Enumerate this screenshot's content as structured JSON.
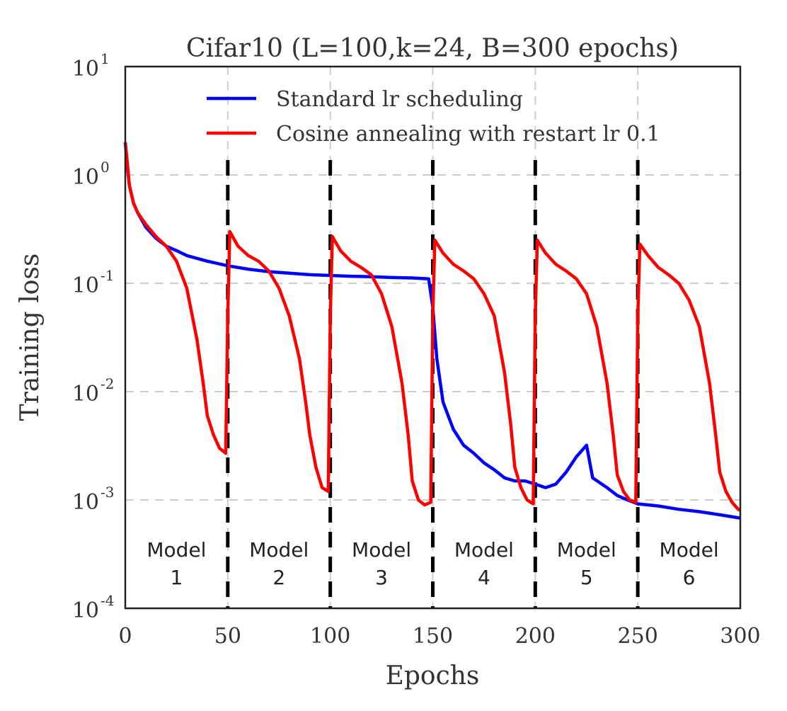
{
  "chart_data": {
    "type": "line",
    "title": "Cifar10 (L=100,k=24, B=300 epochs)",
    "xlabel": "Epochs",
    "ylabel": "Training loss",
    "xlim": [
      0,
      300
    ],
    "ylim_log10": [
      -4,
      1
    ],
    "y_scale": "log",
    "x_ticks": [
      "0",
      "50",
      "100",
      "150",
      "200",
      "250",
      "300"
    ],
    "y_ticks": [
      {
        "base": "10",
        "exp": "-4"
      },
      {
        "base": "10",
        "exp": "-3"
      },
      {
        "base": "10",
        "exp": "-2"
      },
      {
        "base": "10",
        "exp": "-1"
      },
      {
        "base": "10",
        "exp": "0"
      },
      {
        "base": "10",
        "exp": "1"
      }
    ],
    "grid": true,
    "legend_position": "top",
    "series": [
      {
        "name": "Standard lr scheduling",
        "color": "#0000ff",
        "points": [
          [
            0,
            2.0
          ],
          [
            1,
            1.2
          ],
          [
            2,
            0.8
          ],
          [
            4,
            0.55
          ],
          [
            6,
            0.45
          ],
          [
            10,
            0.33
          ],
          [
            15,
            0.26
          ],
          [
            20,
            0.22
          ],
          [
            25,
            0.2
          ],
          [
            30,
            0.18
          ],
          [
            40,
            0.16
          ],
          [
            50,
            0.145
          ],
          [
            60,
            0.135
          ],
          [
            70,
            0.128
          ],
          [
            80,
            0.124
          ],
          [
            90,
            0.12
          ],
          [
            100,
            0.118
          ],
          [
            110,
            0.116
          ],
          [
            120,
            0.115
          ],
          [
            130,
            0.113
          ],
          [
            140,
            0.112
          ],
          [
            148,
            0.11
          ],
          [
            150,
            0.06
          ],
          [
            152,
            0.02
          ],
          [
            155,
            0.008
          ],
          [
            160,
            0.0045
          ],
          [
            165,
            0.0032
          ],
          [
            170,
            0.0027
          ],
          [
            175,
            0.0022
          ],
          [
            180,
            0.0019
          ],
          [
            185,
            0.0016
          ],
          [
            190,
            0.0015
          ],
          [
            195,
            0.0015
          ],
          [
            200,
            0.0014
          ],
          [
            205,
            0.0013
          ],
          [
            210,
            0.0014
          ],
          [
            215,
            0.0018
          ],
          [
            220,
            0.0025
          ],
          [
            225,
            0.0032
          ],
          [
            228,
            0.0016
          ],
          [
            235,
            0.0013
          ],
          [
            240,
            0.0011
          ],
          [
            245,
            0.001
          ],
          [
            250,
            0.00092
          ],
          [
            260,
            0.00088
          ],
          [
            270,
            0.00082
          ],
          [
            280,
            0.00078
          ],
          [
            290,
            0.00073
          ],
          [
            300,
            0.00068
          ]
        ]
      },
      {
        "name": "Cosine annealing with restart lr 0.1",
        "color": "#ff0000",
        "points": [
          [
            0,
            2.0
          ],
          [
            1,
            1.3
          ],
          [
            2,
            0.8
          ],
          [
            4,
            0.55
          ],
          [
            6,
            0.45
          ],
          [
            10,
            0.35
          ],
          [
            15,
            0.27
          ],
          [
            20,
            0.22
          ],
          [
            25,
            0.16
          ],
          [
            30,
            0.09
          ],
          [
            35,
            0.03
          ],
          [
            38,
            0.012
          ],
          [
            40,
            0.006
          ],
          [
            43,
            0.004
          ],
          [
            46,
            0.003
          ],
          [
            49,
            0.0027
          ],
          [
            50,
            0.05
          ],
          [
            51,
            0.3
          ],
          [
            55,
            0.22
          ],
          [
            60,
            0.18
          ],
          [
            65,
            0.16
          ],
          [
            70,
            0.13
          ],
          [
            75,
            0.09
          ],
          [
            80,
            0.05
          ],
          [
            85,
            0.02
          ],
          [
            88,
            0.008
          ],
          [
            90,
            0.004
          ],
          [
            93,
            0.002
          ],
          [
            96,
            0.0013
          ],
          [
            99,
            0.0012
          ],
          [
            100,
            0.05
          ],
          [
            101,
            0.27
          ],
          [
            105,
            0.2
          ],
          [
            110,
            0.16
          ],
          [
            115,
            0.14
          ],
          [
            120,
            0.12
          ],
          [
            125,
            0.08
          ],
          [
            130,
            0.04
          ],
          [
            135,
            0.012
          ],
          [
            138,
            0.004
          ],
          [
            140,
            0.0015
          ],
          [
            143,
            0.001
          ],
          [
            146,
            0.0009
          ],
          [
            149,
            0.00095
          ],
          [
            150,
            0.05
          ],
          [
            151,
            0.25
          ],
          [
            155,
            0.19
          ],
          [
            160,
            0.15
          ],
          [
            165,
            0.13
          ],
          [
            170,
            0.11
          ],
          [
            175,
            0.08
          ],
          [
            180,
            0.05
          ],
          [
            185,
            0.015
          ],
          [
            188,
            0.005
          ],
          [
            190,
            0.002
          ],
          [
            193,
            0.0013
          ],
          [
            196,
            0.001
          ],
          [
            199,
            0.00092
          ],
          [
            200,
            0.05
          ],
          [
            201,
            0.25
          ],
          [
            205,
            0.19
          ],
          [
            210,
            0.15
          ],
          [
            215,
            0.13
          ],
          [
            220,
            0.11
          ],
          [
            225,
            0.08
          ],
          [
            230,
            0.04
          ],
          [
            235,
            0.012
          ],
          [
            238,
            0.004
          ],
          [
            240,
            0.0017
          ],
          [
            243,
            0.0012
          ],
          [
            246,
            0.001
          ],
          [
            249,
            0.00095
          ],
          [
            250,
            0.05
          ],
          [
            251,
            0.23
          ],
          [
            255,
            0.18
          ],
          [
            260,
            0.14
          ],
          [
            265,
            0.12
          ],
          [
            270,
            0.1
          ],
          [
            275,
            0.07
          ],
          [
            280,
            0.04
          ],
          [
            285,
            0.012
          ],
          [
            288,
            0.004
          ],
          [
            290,
            0.0018
          ],
          [
            293,
            0.0012
          ],
          [
            296,
            0.00095
          ],
          [
            299,
            0.00082
          ],
          [
            300,
            0.0008
          ]
        ]
      }
    ],
    "restart_lines": [
      50,
      100,
      150,
      200,
      250
    ],
    "model_labels": [
      {
        "line1": "Model",
        "line2": "1",
        "x": 25
      },
      {
        "line1": "Model",
        "line2": "2",
        "x": 75
      },
      {
        "line1": "Model",
        "line2": "3",
        "x": 125
      },
      {
        "line1": "Model",
        "line2": "4",
        "x": 175
      },
      {
        "line1": "Model",
        "line2": "5",
        "x": 225
      },
      {
        "line1": "Model",
        "line2": "6",
        "x": 275
      }
    ]
  }
}
